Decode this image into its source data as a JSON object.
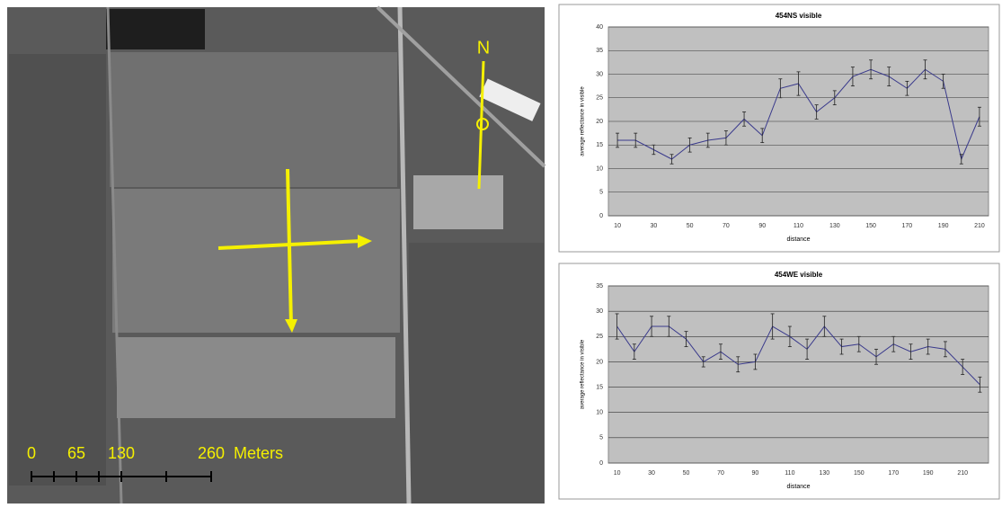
{
  "map": {
    "north": "N",
    "scale_ticks": [
      0,
      65,
      130,
      260
    ],
    "scale_unit": "Meters"
  },
  "chart_data": [
    {
      "type": "line",
      "title": "454NS visible",
      "x_label": "distance",
      "y_label": "average reflectance in visible",
      "categories": [
        "10",
        null,
        "30",
        null,
        "50",
        null,
        "70",
        null,
        "90",
        null,
        "110",
        null,
        "130",
        null,
        "150",
        null,
        "170",
        null,
        "190",
        null,
        "210"
      ],
      "values": [
        16,
        16,
        14,
        12,
        15,
        16,
        16.5,
        20.5,
        17,
        27,
        28,
        22,
        25,
        29.5,
        31,
        29.5,
        27,
        31,
        28.5,
        12,
        21
      ],
      "errors": [
        1.5,
        1.5,
        1,
        1,
        1.5,
        1.5,
        1.5,
        1.5,
        1.5,
        2,
        2.5,
        1.5,
        1.5,
        2,
        2,
        2,
        1.5,
        2,
        1.5,
        1,
        2
      ],
      "color": "#3a3a8c",
      "ylim": [
        0,
        40
      ],
      "yticks": [
        0,
        5,
        10,
        15,
        20,
        25,
        30,
        35,
        40
      ],
      "grid": true
    },
    {
      "type": "line",
      "title": "454WE visible",
      "x_label": "distance",
      "y_label": "average reflectance in visible",
      "categories": [
        "10",
        null,
        "30",
        null,
        "50",
        null,
        "70",
        null,
        "90",
        null,
        "110",
        null,
        "130",
        null,
        "150",
        null,
        "170",
        null,
        "190",
        null,
        "210",
        null
      ],
      "values": [
        27,
        22,
        27,
        27,
        24.5,
        20,
        22,
        19.5,
        20,
        27,
        25,
        22.5,
        27,
        23,
        23.5,
        21,
        23.5,
        22,
        23,
        22.5,
        19,
        15.5
      ],
      "errors": [
        2.5,
        1.5,
        2,
        2,
        1.5,
        1,
        1.5,
        1.5,
        1.5,
        2.5,
        2,
        2,
        2,
        1.5,
        1.5,
        1.5,
        1.5,
        1.5,
        1.5,
        1.5,
        1.5,
        1.5
      ],
      "color": "#3a3a8c",
      "ylim": [
        0,
        35
      ],
      "yticks": [
        0,
        5,
        10,
        15,
        20,
        25,
        30,
        35
      ],
      "grid": true
    }
  ]
}
